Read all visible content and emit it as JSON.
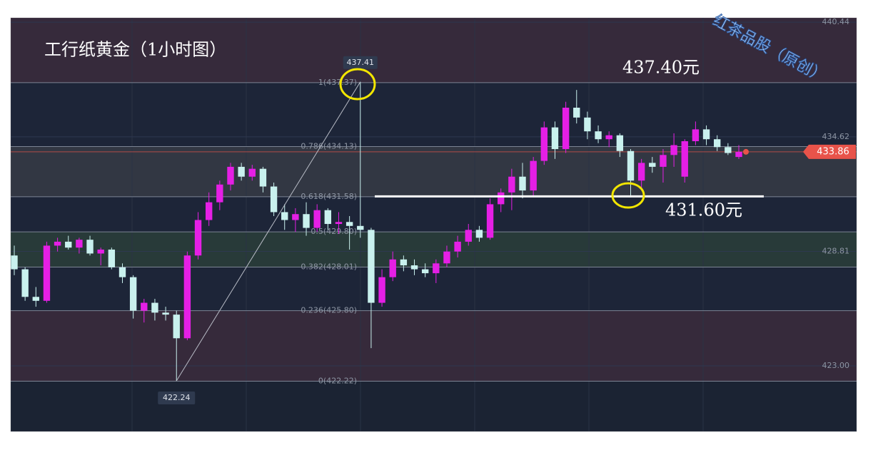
{
  "chart_data": {
    "type": "candlestick",
    "title": "工行纸黄金（1小时图）",
    "watermark": "红茶品股（原创）",
    "annotations": [
      "437.40元",
      "431.60元"
    ],
    "up_color": "#e51fe5",
    "down_color": "#c9f1ee",
    "ylim": [
      419.67,
      440.66
    ],
    "yticks": [
      {
        "value": 423,
        "label": "423.00"
      },
      428.81,
      434.62,
      440.44
    ],
    "grid": true,
    "open": [
      428.6,
      427.9,
      426.5,
      426.3,
      429.1,
      429.3,
      429.0,
      429.4,
      428.7,
      428.9,
      428.0,
      427.5,
      425.8,
      426.2,
      425.7,
      425.6,
      424.4,
      428.6,
      430.4,
      431.3,
      432.2,
      433.1,
      432.6,
      433.0,
      432.1,
      430.8,
      430.4,
      430.7,
      430.0,
      430.9,
      430.2,
      430.3,
      430.1,
      429.9,
      426.2,
      427.5,
      428.4,
      428.1,
      427.9,
      427.7,
      428.2,
      428.8,
      429.3,
      429.9,
      429.5,
      431.2,
      431.8,
      432.6,
      431.9,
      433.4,
      435.1,
      434.0,
      436.1,
      435.6,
      434.9,
      434.5,
      434.7,
      433.9,
      432.4,
      433.3,
      433.1,
      433.7,
      432.6,
      434.4,
      435.0,
      434.5,
      434.1,
      433.6
    ],
    "high": [
      429.1,
      428.0,
      427.0,
      429.3,
      429.5,
      429.6,
      429.5,
      429.6,
      429.0,
      429.0,
      428.2,
      427.6,
      426.4,
      426.4,
      426.0,
      425.8,
      428.8,
      430.8,
      431.8,
      432.4,
      433.3,
      433.3,
      433.2,
      433.1,
      432.3,
      431.2,
      431.0,
      431.3,
      431.2,
      431.0,
      430.8,
      430.6,
      437.41,
      430.0,
      427.9,
      428.8,
      428.6,
      428.4,
      428.2,
      428.4,
      429.1,
      429.6,
      430.2,
      430.1,
      431.5,
      432.0,
      433.0,
      433.3,
      433.6,
      435.4,
      435.4,
      436.4,
      437.0,
      435.9,
      435.2,
      434.9,
      434.8,
      434.0,
      433.5,
      433.6,
      434.0,
      434.8,
      434.5,
      435.4,
      435.2,
      434.7,
      434.3,
      434.2
    ],
    "low": [
      427.6,
      426.3,
      426.0,
      426.2,
      428.8,
      428.9,
      428.7,
      428.6,
      428.1,
      427.9,
      427.2,
      425.4,
      425.2,
      425.3,
      425.3,
      422.24,
      424.3,
      428.4,
      430.1,
      430.9,
      431.9,
      432.4,
      432.4,
      431.8,
      430.6,
      429.9,
      429.8,
      429.6,
      429.8,
      429.9,
      429.7,
      428.9,
      429.5,
      423.9,
      426.0,
      427.3,
      427.8,
      427.6,
      427.5,
      427.2,
      428.0,
      428.5,
      429.1,
      429.3,
      429.4,
      430.8,
      430.9,
      431.5,
      431.6,
      433.2,
      433.5,
      433.8,
      435.3,
      434.5,
      434.3,
      434.1,
      433.6,
      431.55,
      431.9,
      432.8,
      432.3,
      433.1,
      432.3,
      434.2,
      434.2,
      433.9,
      433.7,
      433.5
    ],
    "close": [
      427.9,
      426.5,
      426.3,
      429.1,
      429.3,
      429.0,
      429.4,
      428.7,
      428.9,
      428.0,
      427.5,
      425.8,
      426.2,
      425.7,
      425.6,
      424.4,
      428.6,
      430.4,
      431.3,
      432.2,
      433.1,
      432.6,
      433.0,
      432.1,
      430.8,
      430.4,
      430.7,
      430.0,
      430.9,
      430.2,
      430.3,
      430.1,
      429.9,
      426.2,
      427.5,
      428.4,
      428.1,
      427.9,
      427.7,
      428.2,
      428.8,
      429.3,
      429.9,
      429.5,
      431.2,
      431.8,
      432.6,
      431.9,
      433.4,
      435.1,
      434.0,
      436.1,
      435.6,
      434.9,
      434.5,
      434.7,
      433.9,
      432.4,
      433.3,
      433.1,
      433.7,
      434.2,
      434.4,
      435.0,
      434.5,
      434.1,
      433.8,
      433.86
    ],
    "high_label": 437.41,
    "low_label": 422.24,
    "last_price": 433.86,
    "last_color": "#e8534a",
    "support_line": 431.6,
    "fib_levels": [
      {
        "value": 437.37,
        "label": "1(437.37)"
      },
      {
        "value": 434.13,
        "label": "0.786(434.13)"
      },
      {
        "value": 431.58,
        "label": "0.618(431.58)"
      },
      {
        "value": 429.8,
        "label": "0.5(429.80)"
      },
      {
        "value": 428.01,
        "label": "0.382(428.01)"
      },
      {
        "value": 425.8,
        "label": "0.236(425.80)"
      },
      {
        "value": 422.22,
        "label": "0(422.22)"
      }
    ],
    "fib_band_colors": [
      "#3a2b3c",
      "#1e2638",
      "#353a45",
      "#1e2638",
      "#2a3d3a",
      "#1e2638",
      "#3a2b3c",
      "#1c2333"
    ]
  }
}
